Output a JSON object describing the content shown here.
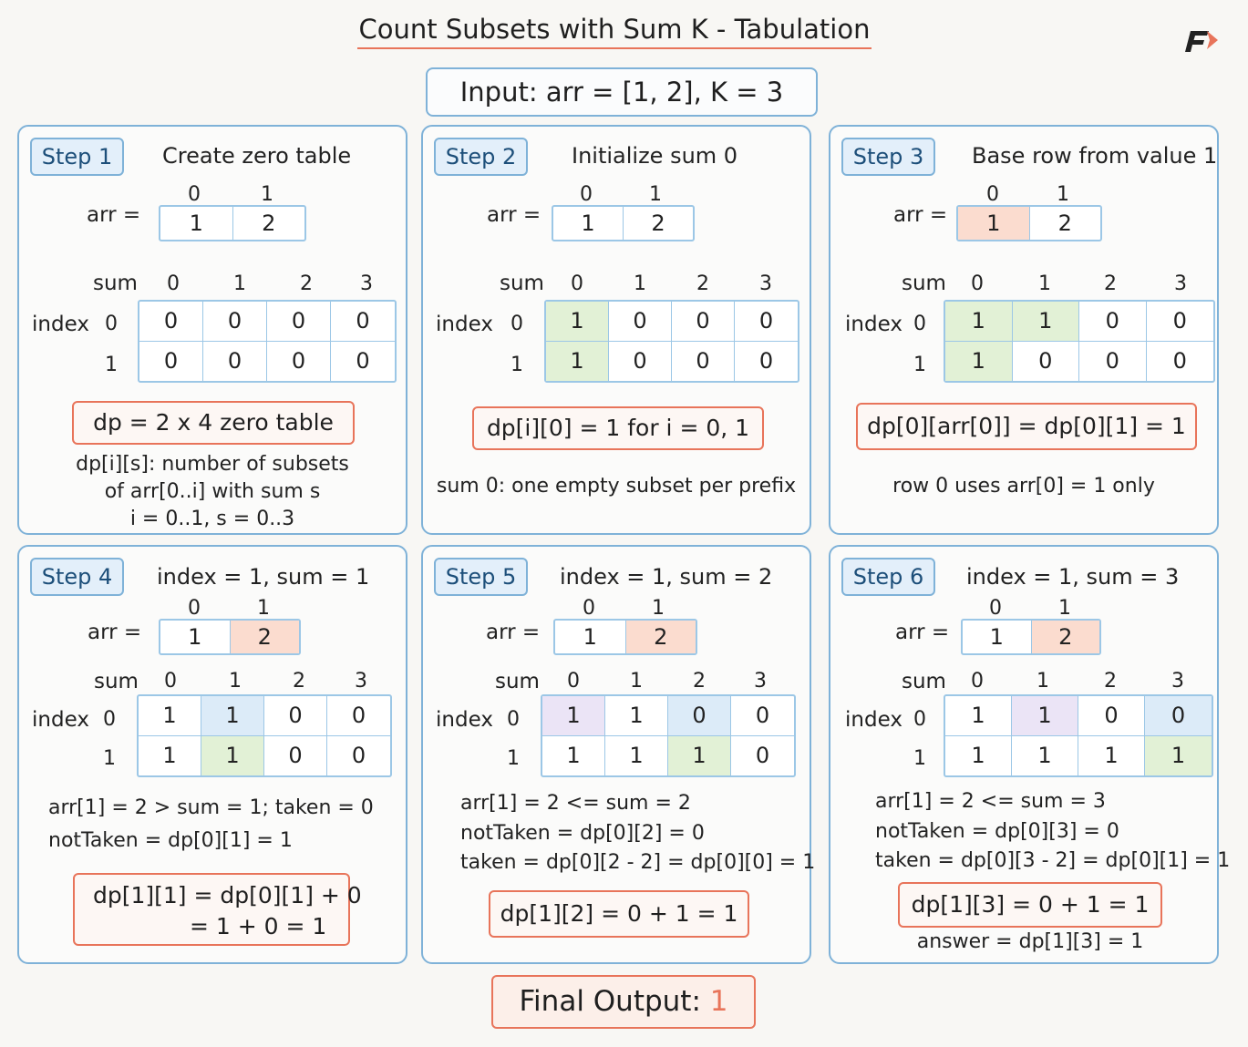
{
  "title": "Count Subsets with Sum K - Tabulation",
  "input": "Input: arr = [1, 2], K = 3",
  "final_label": "Final Output:",
  "final_value": "1",
  "labels": {
    "arr": "arr =",
    "sum": "sum",
    "index": "index"
  },
  "colors": {
    "border_blue": "#7fb2d8",
    "accent_orange": "#e8745a",
    "green": "#e2f1d6",
    "blue": "#dcebf8",
    "purple": "#ebe4f6",
    "orange_fill": "#fbdccf"
  },
  "steps": [
    {
      "tag": "Step 1",
      "heading": "Create zero table",
      "arr_idx": [
        "0",
        "1"
      ],
      "arr": [
        "1",
        "2"
      ],
      "cols": [
        "0",
        "1",
        "2",
        "3"
      ],
      "rows": [
        "0",
        "1"
      ],
      "table": [
        [
          "0",
          "0",
          "0",
          "0"
        ],
        [
          "0",
          "0",
          "0",
          "0"
        ]
      ],
      "formula": [
        "dp = 2 x 4 zero table"
      ],
      "notes": [
        "dp[i][s]: number of subsets",
        "of arr[0..i] with sum s",
        "i = 0..1, s = 0..3"
      ]
    },
    {
      "tag": "Step 2",
      "heading": "Initialize sum 0",
      "arr_idx": [
        "0",
        "1"
      ],
      "arr": [
        "1",
        "2"
      ],
      "cols": [
        "0",
        "1",
        "2",
        "3"
      ],
      "rows": [
        "0",
        "1"
      ],
      "table": [
        [
          "1",
          "0",
          "0",
          "0"
        ],
        [
          "1",
          "0",
          "0",
          "0"
        ]
      ],
      "formula": [
        "dp[i][0] = 1 for i = 0, 1"
      ],
      "notes": [
        "sum 0: one empty subset per prefix"
      ]
    },
    {
      "tag": "Step 3",
      "heading": "Base row from value 1",
      "arr_idx": [
        "0",
        "1"
      ],
      "arr": [
        "1",
        "2"
      ],
      "cols": [
        "0",
        "1",
        "2",
        "3"
      ],
      "rows": [
        "0",
        "1"
      ],
      "table": [
        [
          "1",
          "1",
          "0",
          "0"
        ],
        [
          "1",
          "0",
          "0",
          "0"
        ]
      ],
      "formula": [
        "dp[0][arr[0]] = dp[0][1] = 1"
      ],
      "notes": [
        "row 0 uses arr[0] = 1 only"
      ]
    },
    {
      "tag": "Step 4",
      "heading": "index = 1, sum = 1",
      "arr_idx": [
        "0",
        "1"
      ],
      "arr": [
        "1",
        "2"
      ],
      "cols": [
        "0",
        "1",
        "2",
        "3"
      ],
      "rows": [
        "0",
        "1"
      ],
      "table": [
        [
          "1",
          "1",
          "0",
          "0"
        ],
        [
          "1",
          "1",
          "0",
          "0"
        ]
      ],
      "notes": [
        "arr[1] = 2 > sum = 1; taken = 0",
        "notTaken = dp[0][1] = 1"
      ],
      "formula": [
        "dp[1][1] = dp[0][1] + 0",
        "= 1 + 0 = 1"
      ]
    },
    {
      "tag": "Step 5",
      "heading": "index = 1, sum = 2",
      "arr_idx": [
        "0",
        "1"
      ],
      "arr": [
        "1",
        "2"
      ],
      "cols": [
        "0",
        "1",
        "2",
        "3"
      ],
      "rows": [
        "0",
        "1"
      ],
      "table": [
        [
          "1",
          "1",
          "0",
          "0"
        ],
        [
          "1",
          "1",
          "1",
          "0"
        ]
      ],
      "notes": [
        "arr[1] = 2 <= sum = 2",
        "notTaken = dp[0][2] = 0",
        "taken = dp[0][2 - 2] = dp[0][0] = 1"
      ],
      "formula": [
        "dp[1][2] = 0 + 1 = 1"
      ]
    },
    {
      "tag": "Step 6",
      "heading": "index = 1, sum = 3",
      "arr_idx": [
        "0",
        "1"
      ],
      "arr": [
        "1",
        "2"
      ],
      "cols": [
        "0",
        "1",
        "2",
        "3"
      ],
      "rows": [
        "0",
        "1"
      ],
      "table": [
        [
          "1",
          "1",
          "0",
          "0"
        ],
        [
          "1",
          "1",
          "1",
          "1"
        ]
      ],
      "notes": [
        "arr[1] = 2 <= sum = 3",
        "notTaken = dp[0][3] = 0",
        "taken = dp[0][3 - 2] = dp[0][1] = 1"
      ],
      "formula": [
        "dp[1][3] = 0 + 1 = 1"
      ],
      "answer": "answer = dp[1][3] = 1"
    }
  ]
}
